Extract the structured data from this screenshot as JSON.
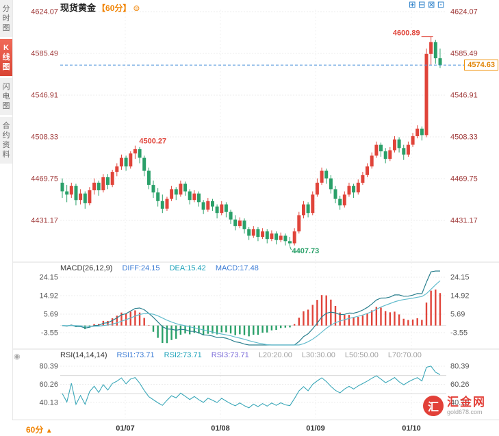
{
  "sidebar": {
    "tabs": [
      {
        "label": "分时图",
        "active": false
      },
      {
        "label": "K线图",
        "active": true
      },
      {
        "label": "闪电图",
        "active": false
      },
      {
        "label": "合约资料",
        "active": false
      }
    ]
  },
  "header": {
    "title": "现货黄金",
    "period": "【60分】"
  },
  "icons": {
    "settings": "⊜",
    "layout": [
      "⊞",
      "⊟",
      "⊠",
      "⊡"
    ],
    "rsi_panel": "◉",
    "up_arrow": "▲"
  },
  "price_tag": {
    "value": "4574.63"
  },
  "macd_header": {
    "name": "MACD(26,12,9)",
    "diff": "DIFF:24.15",
    "dea": "DEA:15.42",
    "macd": "MACD:17.48"
  },
  "rsi_header": {
    "name": "RSI(14,14,14)",
    "rsi1": "RSI1:73.71",
    "rsi2": "RSI2:73.71",
    "rsi3": "RSI3:73.71",
    "l20": "L20:20.00",
    "l30": "L30:30.00",
    "l50": "L50:50.00",
    "l70": "L70:70.00"
  },
  "bottom_bar": {
    "period_label": "60分"
  },
  "watermark": {
    "logo_char": "汇",
    "name": "汇金网",
    "domain": "gold678.com"
  },
  "chart_data": {
    "type": "candlestick",
    "symbol": "现货黄金",
    "interval": "60分",
    "x_labels": [
      "01/07",
      "01/08",
      "01/09",
      "01/10"
    ],
    "y_axis_main": [
      4624.07,
      4585.49,
      4546.91,
      4508.33,
      4469.75,
      4431.17
    ],
    "y_axis_macd": [
      24.15,
      14.92,
      5.69,
      -3.55
    ],
    "y_axis_rsi": [
      80.39,
      60.26,
      40.13
    ],
    "rsi_levels": [
      70,
      50
    ],
    "current_price": 4574.63,
    "indicators": {
      "macd": {
        "params": [
          26,
          12,
          9
        ],
        "diff": 24.15,
        "dea": 15.42,
        "macd": 17.48
      },
      "rsi": {
        "params": [
          14,
          14,
          14
        ],
        "rsi1": 73.71,
        "rsi2": 73.71,
        "rsi3": 73.71,
        "levels": [
          20,
          30,
          50,
          70
        ]
      }
    },
    "annotations": [
      {
        "text": "4600.89",
        "price": 4600.89,
        "candle": 81,
        "side": "above-left",
        "dir": "up"
      },
      {
        "text": "4500.27",
        "price": 4500.27,
        "candle": 16,
        "side": "above-right",
        "dir": "up"
      },
      {
        "text": "4407.73",
        "price": 4407.73,
        "candle": 50,
        "side": "below-right",
        "dir": "down"
      }
    ],
    "colors": {
      "up": "#e0443a",
      "down": "#2aa069",
      "price_line": "#4a90d9",
      "tag": "#f0920a",
      "diff_line": "#2a7f8e",
      "dea_line": "#63bccd",
      "rsi_line": "#3aa7b8"
    },
    "candles": [
      [
        4466,
        4470,
        4452,
        4458
      ],
      [
        4458,
        4464,
        4448,
        4455
      ],
      [
        4455,
        4466,
        4452,
        4463
      ],
      [
        4463,
        4465,
        4445,
        4450
      ],
      [
        4450,
        4460,
        4446,
        4456
      ],
      [
        4456,
        4458,
        4442,
        4447
      ],
      [
        4447,
        4462,
        4445,
        4459
      ],
      [
        4459,
        4470,
        4455,
        4466
      ],
      [
        4466,
        4468,
        4454,
        4459
      ],
      [
        4459,
        4474,
        4457,
        4471
      ],
      [
        4471,
        4474,
        4460,
        4464
      ],
      [
        4464,
        4478,
        4462,
        4476
      ],
      [
        4476,
        4484,
        4472,
        4481
      ],
      [
        4481,
        4492,
        4478,
        4489
      ],
      [
        4489,
        4491,
        4477,
        4481
      ],
      [
        4481,
        4495,
        4479,
        4493
      ],
      [
        4493,
        4500.27,
        4488,
        4497
      ],
      [
        4497,
        4499,
        4484,
        4489
      ],
      [
        4489,
        4491,
        4472,
        4477
      ],
      [
        4477,
        4480,
        4460,
        4464
      ],
      [
        4464,
        4468,
        4452,
        4457
      ],
      [
        4457,
        4461,
        4444,
        4449
      ],
      [
        4449,
        4455,
        4438,
        4442
      ],
      [
        4442,
        4453,
        4440,
        4451
      ],
      [
        4451,
        4463,
        4449,
        4460
      ],
      [
        4460,
        4462,
        4450,
        4455
      ],
      [
        4455,
        4468,
        4453,
        4465
      ],
      [
        4465,
        4467,
        4454,
        4458
      ],
      [
        4458,
        4460,
        4446,
        4450
      ],
      [
        4450,
        4459,
        4448,
        4456
      ],
      [
        4456,
        4458,
        4444,
        4448
      ],
      [
        4448,
        4450,
        4437,
        4441
      ],
      [
        4441,
        4452,
        4439,
        4449
      ],
      [
        4449,
        4451,
        4440,
        4444
      ],
      [
        4444,
        4446,
        4433,
        4438
      ],
      [
        4438,
        4449,
        4436,
        4446
      ],
      [
        4446,
        4448,
        4434,
        4439
      ],
      [
        4439,
        4441,
        4428,
        4432
      ],
      [
        4432,
        4436,
        4422,
        4426
      ],
      [
        4426,
        4434,
        4424,
        4431
      ],
      [
        4431,
        4433,
        4419,
        4423
      ],
      [
        4423,
        4425,
        4413,
        4417
      ],
      [
        4417,
        4426,
        4415,
        4423
      ],
      [
        4423,
        4425,
        4412,
        4416
      ],
      [
        4416,
        4424,
        4414,
        4421
      ],
      [
        4421,
        4423,
        4410,
        4414
      ],
      [
        4414,
        4422,
        4412,
        4419
      ],
      [
        4419,
        4421,
        4409,
        4413
      ],
      [
        4413,
        4420,
        4411,
        4417
      ],
      [
        4417,
        4419,
        4408,
        4412
      ],
      [
        4412,
        4416,
        4407.73,
        4410
      ],
      [
        4410,
        4424,
        4408,
        4421
      ],
      [
        4421,
        4439,
        4419,
        4436
      ],
      [
        4436,
        4449,
        4433,
        4446
      ],
      [
        4446,
        4448,
        4434,
        4438
      ],
      [
        4438,
        4458,
        4436,
        4455
      ],
      [
        4455,
        4470,
        4453,
        4466
      ],
      [
        4466,
        4480,
        4464,
        4477
      ],
      [
        4477,
        4479,
        4465,
        4470
      ],
      [
        4470,
        4473,
        4456,
        4460
      ],
      [
        4460,
        4463,
        4447,
        4451
      ],
      [
        4451,
        4454,
        4441,
        4445
      ],
      [
        4445,
        4458,
        4443,
        4455
      ],
      [
        4455,
        4466,
        4453,
        4463
      ],
      [
        4463,
        4465,
        4452,
        4457
      ],
      [
        4457,
        4469,
        4455,
        4466
      ],
      [
        4466,
        4476,
        4464,
        4473
      ],
      [
        4473,
        4484,
        4471,
        4481
      ],
      [
        4481,
        4494,
        4479,
        4491
      ],
      [
        4491,
        4504,
        4489,
        4501
      ],
      [
        4501,
        4503,
        4490,
        4495
      ],
      [
        4495,
        4498,
        4484,
        4488
      ],
      [
        4488,
        4499,
        4486,
        4496
      ],
      [
        4496,
        4509,
        4494,
        4506
      ],
      [
        4506,
        4508,
        4494,
        4498
      ],
      [
        4498,
        4501,
        4487,
        4492
      ],
      [
        4492,
        4504,
        4490,
        4501
      ],
      [
        4501,
        4512,
        4499,
        4509
      ],
      [
        4509,
        4519,
        4507,
        4516
      ],
      [
        4516,
        4518,
        4505,
        4510
      ],
      [
        4510,
        4590,
        4508,
        4585
      ],
      [
        4585,
        4600.89,
        4575,
        4596
      ],
      [
        4596,
        4598,
        4576,
        4581
      ],
      [
        4581,
        4590,
        4572,
        4574.63
      ]
    ]
  }
}
